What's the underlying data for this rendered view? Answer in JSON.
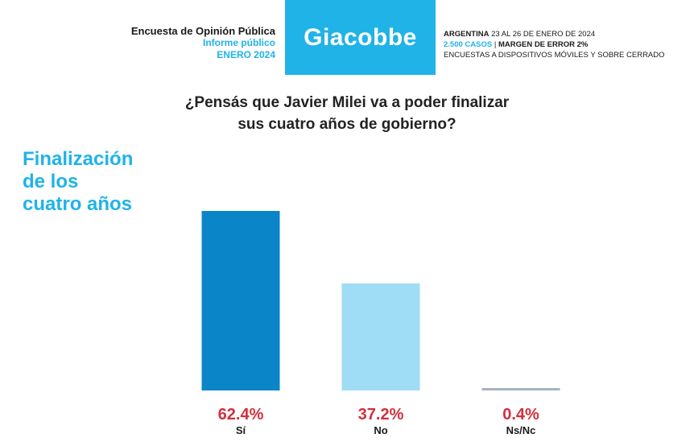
{
  "header": {
    "survey_title": "Encuesta de Opinión Pública",
    "report_type": "Informe público",
    "month": "ENERO 2024",
    "brand": "Giacobbe",
    "country_label": "ARGENTINA",
    "dates": " 23 AL 26 DE ENERO DE 2024",
    "cases": "2.500 CASOS",
    "separator": " | ",
    "margin": "MARGEN DE ERROR 2%",
    "method": "ENCUESTAS A DISPOSITIVOS MÓVILES Y SOBRE CERRADO"
  },
  "question": {
    "line1": "¿Pensás que Javier Milei va a poder finalizar",
    "line2": "sus cuatro años de gobierno?"
  },
  "side_title": {
    "line1": "Finalización",
    "line2": "de los",
    "line3": "cuatro años"
  },
  "colors": {
    "brand": "#1fb3e8",
    "bar_si": "#0a86c8",
    "bar_no": "#9fdcf5",
    "bar_nsnc": "#a7b2bc",
    "value_red": "#d1303c"
  },
  "chart_data": {
    "type": "bar",
    "categories": [
      "Sí",
      "No",
      "Ns/Nc"
    ],
    "values": [
      62.4,
      37.2,
      0.4
    ],
    "value_labels": [
      "62.4%",
      "37.2%",
      "0.4%"
    ],
    "title": "",
    "xlabel": "",
    "ylabel": "",
    "ylim": [
      0,
      100
    ],
    "grid": false,
    "legend": "none"
  }
}
